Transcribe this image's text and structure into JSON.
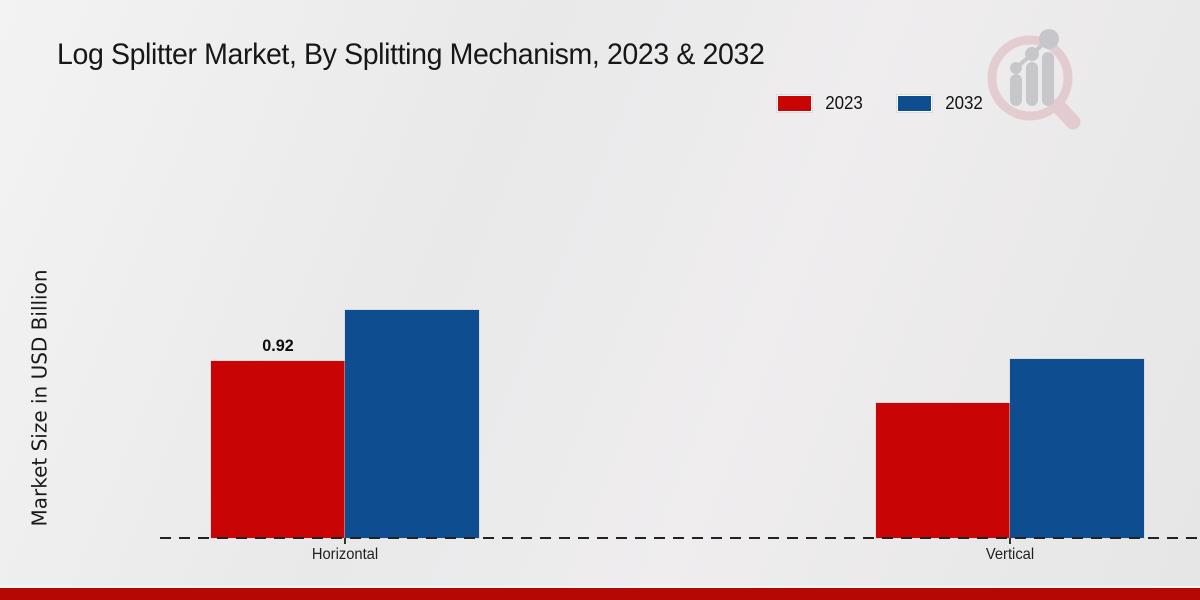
{
  "page": {
    "title": "Log Splitter Market, By Splitting Mechanism, 2023 & 2032"
  },
  "chart_data": {
    "type": "bar",
    "title": "Log Splitter Market, By Splitting Mechanism, 2023 & 2032",
    "categories": [
      "Horizontal",
      "Vertical"
    ],
    "series": [
      {
        "name": "2023",
        "color": "#c90404",
        "values": [
          0.92,
          0.7
        ]
      },
      {
        "name": "2032",
        "color": "#0e4e90",
        "values": [
          1.18,
          0.93
        ]
      }
    ],
    "data_labels": [
      {
        "series_index": 0,
        "category_index": 0,
        "text": "0.92"
      }
    ],
    "xlabel": "",
    "ylabel": "Market Size in USD Billion",
    "ylim": [
      0,
      1.4
    ],
    "grid": false,
    "y_axis_ticks_visible": false,
    "baseline_style": "dashed",
    "legend_position": "top-right"
  },
  "branding": {
    "bottom_bar_color": "#b50703",
    "watermark_icon": "magnifier-bar-chart-logo",
    "watermark_ring_color": "#ddb4b9",
    "watermark_bars_color": "#c6c6ca"
  }
}
